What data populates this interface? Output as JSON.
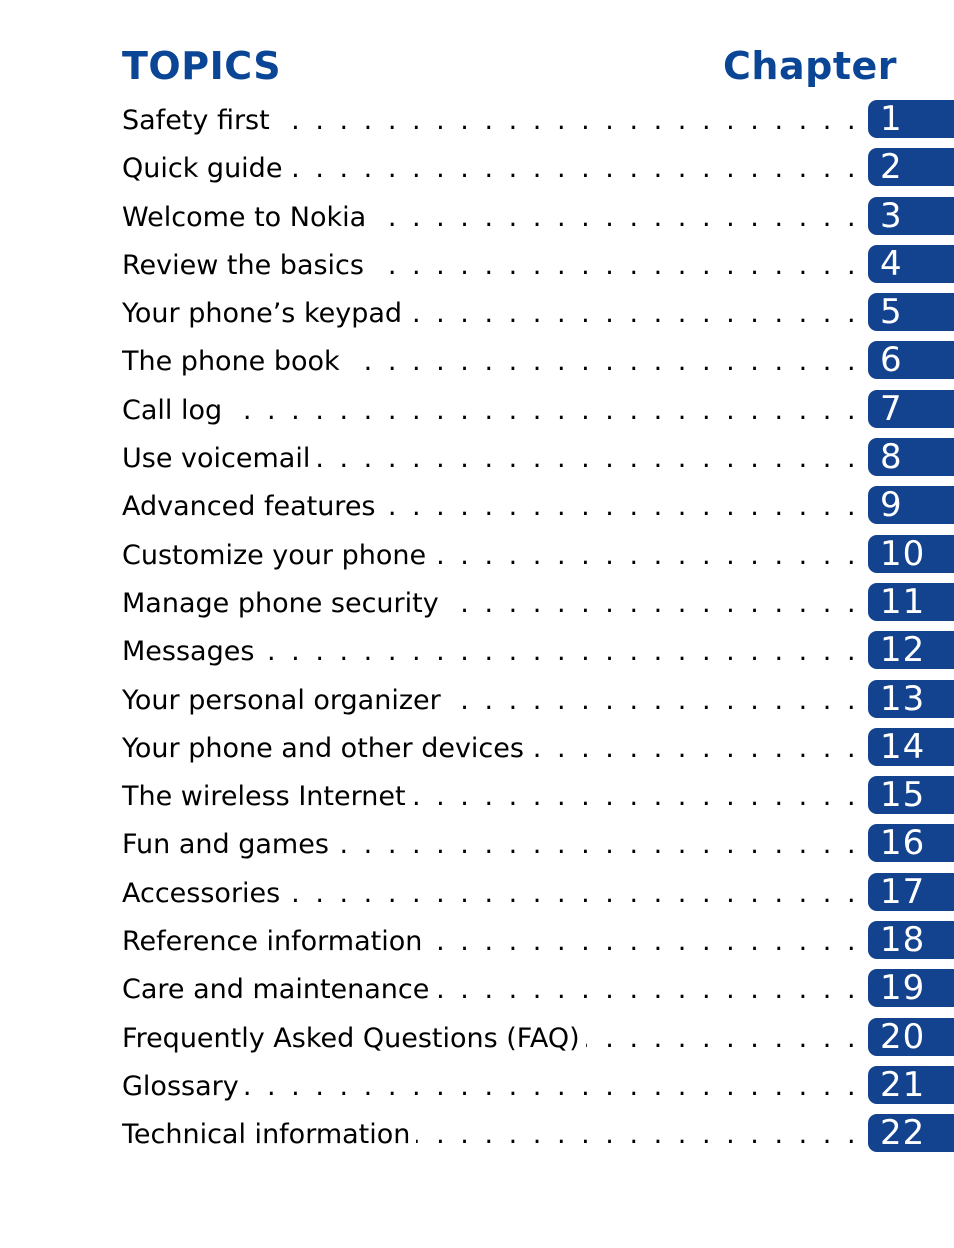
{
  "header": {
    "topics_label": "TOPICS",
    "chapter_label": "Chapter"
  },
  "colors": {
    "accent": "#0b4596",
    "tab": "#13428f"
  },
  "toc": [
    {
      "topic": "Safety first",
      "chapter": "1"
    },
    {
      "topic": "Quick guide",
      "chapter": "2"
    },
    {
      "topic": "Welcome to Nokia",
      "chapter": "3"
    },
    {
      "topic": "Review the basics",
      "chapter": "4"
    },
    {
      "topic": "Your phone’s keypad",
      "chapter": "5"
    },
    {
      "topic": "The phone book",
      "chapter": "6"
    },
    {
      "topic": "Call log",
      "chapter": "7"
    },
    {
      "topic": "Use voicemail",
      "chapter": "8"
    },
    {
      "topic": "Advanced features",
      "chapter": "9"
    },
    {
      "topic": "Customize your phone",
      "chapter": "10"
    },
    {
      "topic": "Manage phone security",
      "chapter": "11"
    },
    {
      "topic": "Messages",
      "chapter": "12"
    },
    {
      "topic": "Your personal organizer",
      "chapter": "13"
    },
    {
      "topic": "Your phone and other devices",
      "chapter": "14"
    },
    {
      "topic": "The wireless Internet",
      "chapter": "15"
    },
    {
      "topic": "Fun and games",
      "chapter": "16"
    },
    {
      "topic": "Accessories",
      "chapter": "17"
    },
    {
      "topic": "Reference information",
      "chapter": "18"
    },
    {
      "topic": "Care and maintenance",
      "chapter": "19"
    },
    {
      "topic": "Frequently Asked Questions (FAQ)",
      "chapter": "20"
    },
    {
      "topic": "Glossary",
      "chapter": "21"
    },
    {
      "topic": "Technical information",
      "chapter": "22"
    }
  ]
}
